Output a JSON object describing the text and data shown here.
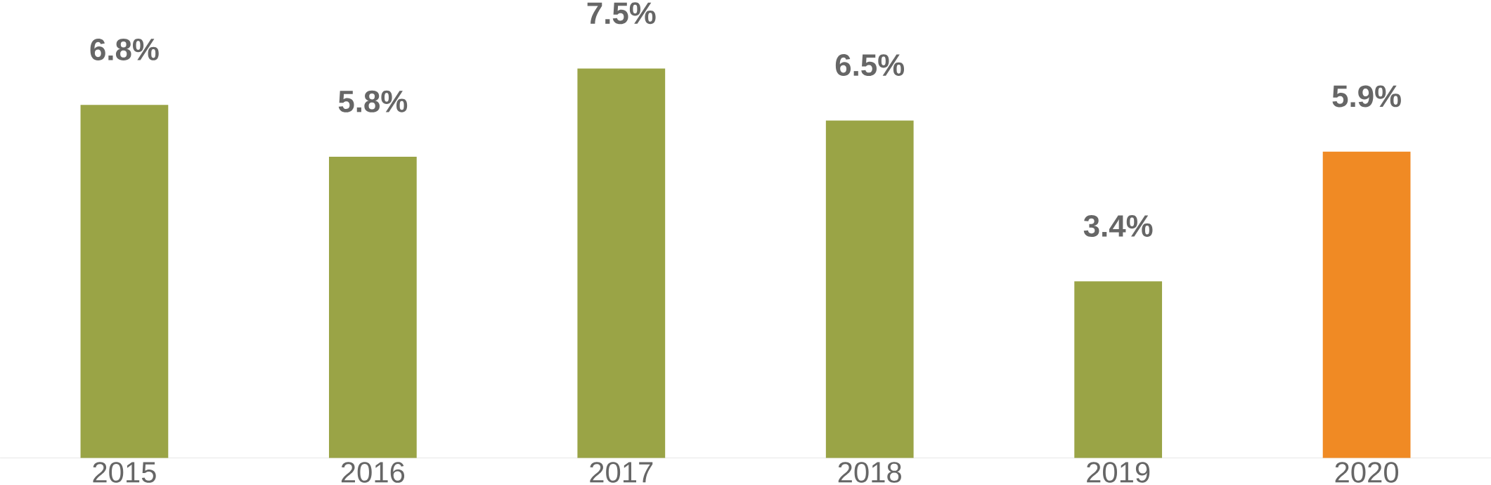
{
  "chart_data": {
    "type": "bar",
    "categories": [
      "2015",
      "2016",
      "2017",
      "2018",
      "2019",
      "2020"
    ],
    "values": [
      6.8,
      5.8,
      7.5,
      6.5,
      3.4,
      5.9
    ],
    "colors": [
      "#9aa446",
      "#9aa446",
      "#9aa446",
      "#9aa446",
      "#9aa446",
      "#f08a24"
    ],
    "value_labels": [
      "6.8%",
      "5.8%",
      "7.5%",
      "6.5%",
      "3.4%",
      "5.9%"
    ],
    "tick_labels": "x"
  }
}
